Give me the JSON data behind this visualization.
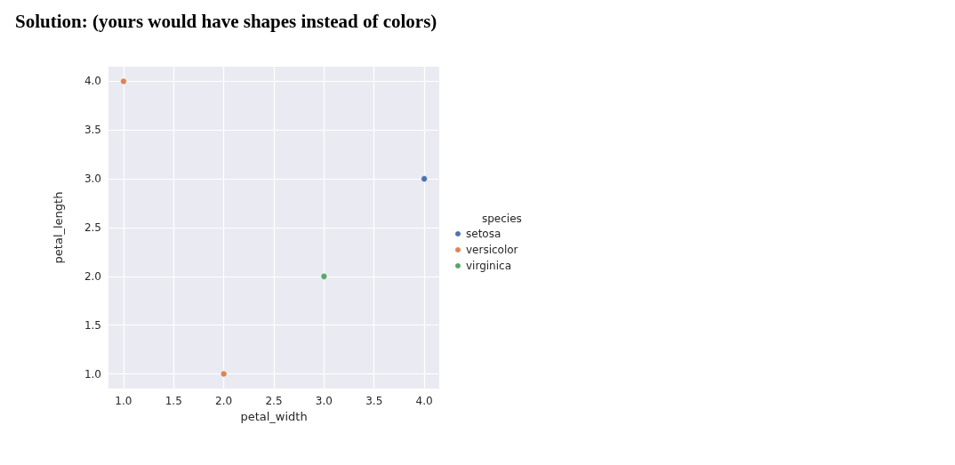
{
  "chart_data": {
    "type": "scatter",
    "title": "Solution: (yours would have shapes instead of colors)",
    "xlabel": "petal_width",
    "ylabel": "petal_length",
    "legend_title": "species",
    "series": [
      {
        "name": "setosa",
        "color": "#4c72b0",
        "x": [
          4
        ],
        "values": [
          3
        ]
      },
      {
        "name": "versicolor",
        "color": "#dd8452",
        "x": [
          1,
          2
        ],
        "values": [
          4,
          1
        ]
      },
      {
        "name": "virginica",
        "color": "#55a868",
        "x": [
          3
        ],
        "values": [
          2
        ]
      }
    ],
    "xlim": [
      0.85,
      4.15
    ],
    "ylim": [
      0.85,
      4.15
    ],
    "xticks": [
      {
        "value": 1,
        "label": "1.0"
      },
      {
        "value": 1.5,
        "label": "1.5"
      },
      {
        "value": 2,
        "label": "2.0"
      },
      {
        "value": 2.5,
        "label": "2.5"
      },
      {
        "value": 3,
        "label": "3.0"
      },
      {
        "value": 3.5,
        "label": "3.5"
      },
      {
        "value": 4,
        "label": "4.0"
      }
    ],
    "yticks": [
      {
        "value": 1,
        "label": "1.0"
      },
      {
        "value": 1.5,
        "label": "1.5"
      },
      {
        "value": 2,
        "label": "2.0"
      },
      {
        "value": 2.5,
        "label": "2.5"
      },
      {
        "value": 3,
        "label": "3.0"
      },
      {
        "value": 3.5,
        "label": "3.5"
      },
      {
        "value": 4,
        "label": "4.0"
      }
    ],
    "grid": true,
    "legend": "right",
    "marker": "circle"
  }
}
